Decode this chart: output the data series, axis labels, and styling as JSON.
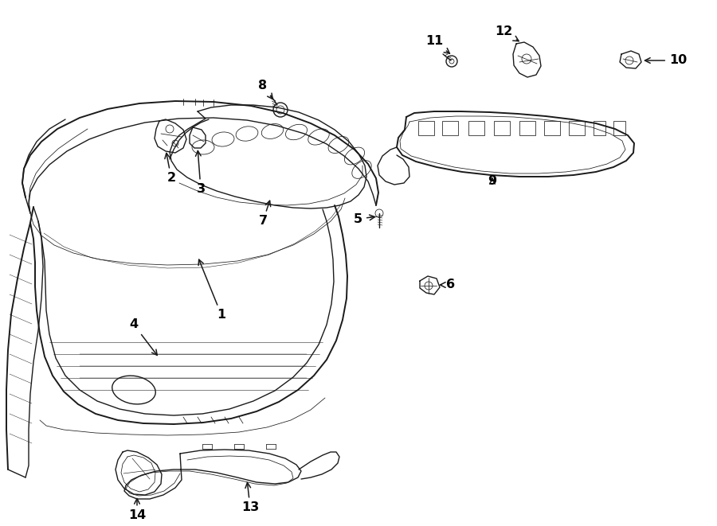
{
  "bg_color": "#ffffff",
  "line_color": "#1a1a1a",
  "lw": 1.0,
  "lw_thin": 0.55,
  "lw_thick": 1.4,
  "label_fontsize": 11.5,
  "label_fontweight": "bold",
  "arrow_lw": 1.1,
  "fig_w": 9.0,
  "fig_h": 6.61,
  "dpi": 100
}
